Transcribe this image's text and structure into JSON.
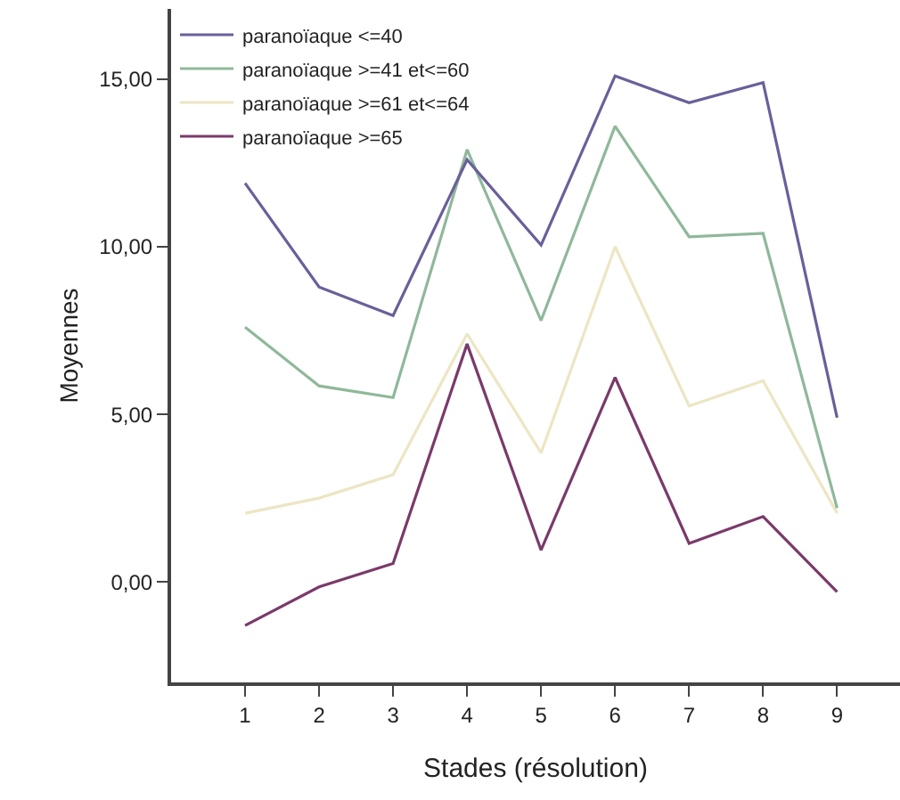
{
  "chart_data": {
    "type": "line",
    "xlabel": "Stades (résolution)",
    "ylabel": "Moyennes",
    "x": [
      1,
      2,
      3,
      4,
      5,
      6,
      7,
      8,
      9
    ],
    "series": [
      {
        "name": "paranoïaque <=40",
        "color": "#6a5f9a",
        "values": [
          11.9,
          8.8,
          7.95,
          12.6,
          10.05,
          15.1,
          14.3,
          14.9,
          4.9
        ]
      },
      {
        "name": "paranoïaque >=41 et<=60",
        "color": "#8fb89a",
        "values": [
          7.6,
          5.85,
          5.5,
          12.9,
          7.8,
          13.6,
          10.3,
          10.4,
          2.2
        ]
      },
      {
        "name": "paranoïaque >=61 et<=64",
        "color": "#ece6c4",
        "values": [
          2.05,
          2.5,
          3.2,
          7.4,
          3.85,
          10.0,
          5.25,
          6.0,
          2.05
        ]
      },
      {
        "name": "paranoïaque >=65",
        "color": "#7a3a6a",
        "values": [
          -1.3,
          -0.15,
          0.55,
          7.1,
          0.95,
          6.1,
          1.15,
          1.95,
          -0.3
        ]
      }
    ],
    "xlim": [
      0,
      9.85
    ],
    "xticks": [
      1,
      2,
      3,
      4,
      5,
      6,
      7,
      8,
      9
    ],
    "ylim": [
      -3,
      17.1
    ],
    "yticks": [
      {
        "value": 0,
        "label": "0,00"
      },
      {
        "value": 5,
        "label": "5,00"
      },
      {
        "value": 10,
        "label": "10,00"
      },
      {
        "value": 15,
        "label": "15,00"
      }
    ],
    "grid": false,
    "legend": "top left",
    "marker": "none",
    "line_style": "solid"
  }
}
